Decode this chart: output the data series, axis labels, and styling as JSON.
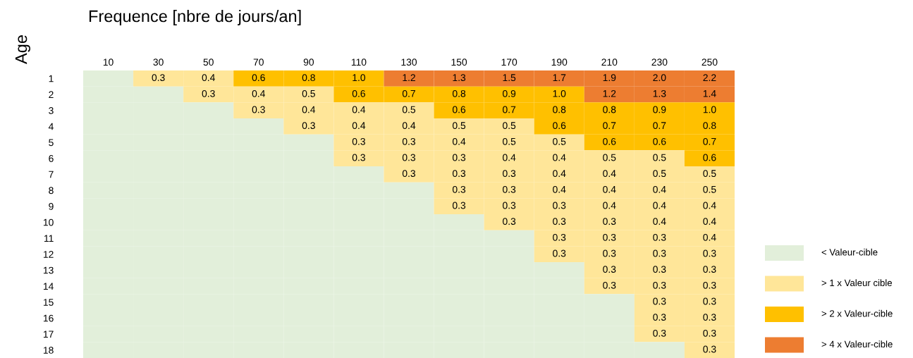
{
  "chart_data": {
    "type": "heatmap",
    "title": "Frequence [nbre de jours/an]",
    "ylabel": "Age",
    "categories": [
      "10",
      "30",
      "50",
      "70",
      "90",
      "110",
      "130",
      "150",
      "170",
      "190",
      "210",
      "230",
      "250"
    ],
    "y_categories": [
      "1",
      "2",
      "3",
      "4",
      "5",
      "6",
      "7",
      "8",
      "9",
      "10",
      "11",
      "12",
      "13",
      "14",
      "15",
      "16",
      "17",
      "18"
    ],
    "cells": [
      [
        null,
        0.3,
        0.4,
        0.6,
        0.8,
        1.0,
        1.2,
        1.3,
        1.5,
        1.7,
        1.9,
        2.0,
        2.2
      ],
      [
        null,
        null,
        0.3,
        0.4,
        0.5,
        0.6,
        0.7,
        0.8,
        0.9,
        1.0,
        1.2,
        1.3,
        1.4
      ],
      [
        null,
        null,
        null,
        0.3,
        0.4,
        0.4,
        0.5,
        0.6,
        0.7,
        0.8,
        0.8,
        0.9,
        1.0
      ],
      [
        null,
        null,
        null,
        null,
        0.3,
        0.4,
        0.4,
        0.5,
        0.5,
        0.6,
        0.7,
        0.7,
        0.8
      ],
      [
        null,
        null,
        null,
        null,
        null,
        0.3,
        0.3,
        0.4,
        0.5,
        0.5,
        0.6,
        0.6,
        0.7
      ],
      [
        null,
        null,
        null,
        null,
        null,
        0.3,
        0.3,
        0.3,
        0.4,
        0.4,
        0.5,
        0.5,
        0.6
      ],
      [
        null,
        null,
        null,
        null,
        null,
        null,
        0.3,
        0.3,
        0.3,
        0.4,
        0.4,
        0.5,
        0.5
      ],
      [
        null,
        null,
        null,
        null,
        null,
        null,
        null,
        0.3,
        0.3,
        0.4,
        0.4,
        0.4,
        0.5
      ],
      [
        null,
        null,
        null,
        null,
        null,
        null,
        null,
        0.3,
        0.3,
        0.3,
        0.4,
        0.4,
        0.4
      ],
      [
        null,
        null,
        null,
        null,
        null,
        null,
        null,
        null,
        0.3,
        0.3,
        0.3,
        0.4,
        0.4
      ],
      [
        null,
        null,
        null,
        null,
        null,
        null,
        null,
        null,
        null,
        0.3,
        0.3,
        0.3,
        0.4
      ],
      [
        null,
        null,
        null,
        null,
        null,
        null,
        null,
        null,
        null,
        0.3,
        0.3,
        0.3,
        0.3
      ],
      [
        null,
        null,
        null,
        null,
        null,
        null,
        null,
        null,
        null,
        null,
        0.3,
        0.3,
        0.3
      ],
      [
        null,
        null,
        null,
        null,
        null,
        null,
        null,
        null,
        null,
        null,
        0.3,
        0.3,
        0.3
      ],
      [
        null,
        null,
        null,
        null,
        null,
        null,
        null,
        null,
        null,
        null,
        null,
        0.3,
        0.3
      ],
      [
        null,
        null,
        null,
        null,
        null,
        null,
        null,
        null,
        null,
        null,
        null,
        0.3,
        0.3
      ],
      [
        null,
        null,
        null,
        null,
        null,
        null,
        null,
        null,
        null,
        null,
        null,
        0.3,
        0.3
      ],
      [
        null,
        null,
        null,
        null,
        null,
        null,
        null,
        null,
        null,
        null,
        null,
        null,
        0.3
      ]
    ],
    "cell_labels": [
      [
        null,
        "0.3",
        "0.4",
        "0.6",
        "0.8",
        "1.0",
        "1.2",
        "1.3",
        "1.5",
        "1.7",
        "1.9",
        "2.0",
        "2.2"
      ],
      [
        null,
        null,
        "0.3",
        "0.4",
        "0.5",
        "0.6",
        "0.7",
        "0.8",
        "0.9",
        "1.0",
        "1.2",
        "1.3",
        "1.4"
      ],
      [
        null,
        null,
        null,
        "0.3",
        "0.4",
        "0.4",
        "0.5",
        "0.6",
        "0.7",
        "0.8",
        "0.8",
        "0.9",
        "1.0"
      ],
      [
        null,
        null,
        null,
        null,
        "0.3",
        "0.4",
        "0.4",
        "0.5",
        "0.5",
        "0.6",
        "0.7",
        "0.7",
        "0.8"
      ],
      [
        null,
        null,
        null,
        null,
        null,
        "0.3",
        "0.3",
        "0.4",
        "0.5",
        "0.5",
        "0.6",
        "0.6",
        "0.7"
      ],
      [
        null,
        null,
        null,
        null,
        null,
        "0.3",
        "0.3",
        "0.3",
        "0.4",
        "0.4",
        "0.5",
        "0.5",
        "0.6"
      ],
      [
        null,
        null,
        null,
        null,
        null,
        null,
        "0.3",
        "0.3",
        "0.3",
        "0.4",
        "0.4",
        "0.5",
        "0.5"
      ],
      [
        null,
        null,
        null,
        null,
        null,
        null,
        null,
        "0.3",
        "0.3",
        "0.4",
        "0.4",
        "0.4",
        "0.5"
      ],
      [
        null,
        null,
        null,
        null,
        null,
        null,
        null,
        "0.3",
        "0.3",
        "0.3",
        "0.4",
        "0.4",
        "0.4"
      ],
      [
        null,
        null,
        null,
        null,
        null,
        null,
        null,
        null,
        "0.3",
        "0.3",
        "0.3",
        "0.4",
        "0.4"
      ],
      [
        null,
        null,
        null,
        null,
        null,
        null,
        null,
        null,
        null,
        "0.3",
        "0.3",
        "0.3",
        "0.4"
      ],
      [
        null,
        null,
        null,
        null,
        null,
        null,
        null,
        null,
        null,
        "0.3",
        "0.3",
        "0.3",
        "0.3"
      ],
      [
        null,
        null,
        null,
        null,
        null,
        null,
        null,
        null,
        null,
        null,
        "0.3",
        "0.3",
        "0.3"
      ],
      [
        null,
        null,
        null,
        null,
        null,
        null,
        null,
        null,
        null,
        null,
        "0.3",
        "0.3",
        "0.3"
      ],
      [
        null,
        null,
        null,
        null,
        null,
        null,
        null,
        null,
        null,
        null,
        null,
        "0.3",
        "0.3"
      ],
      [
        null,
        null,
        null,
        null,
        null,
        null,
        null,
        null,
        null,
        null,
        null,
        "0.3",
        "0.3"
      ],
      [
        null,
        null,
        null,
        null,
        null,
        null,
        null,
        null,
        null,
        null,
        null,
        "0.3",
        "0.3"
      ],
      [
        null,
        null,
        null,
        null,
        null,
        null,
        null,
        null,
        null,
        null,
        null,
        null,
        "0.3"
      ]
    ],
    "colors": [
      [
        "#e2efda",
        "#ffe699",
        "#ffe699",
        "#ffc000",
        "#ffc000",
        "#ffc000",
        "#ed7d31",
        "#ed7d31",
        "#ed7d31",
        "#ed7d31",
        "#ed7d31",
        "#ed7d31",
        "#ed7d31"
      ],
      [
        "#e2efda",
        "#e2efda",
        "#ffe699",
        "#ffe699",
        "#ffe699",
        "#ffc000",
        "#ffc000",
        "#ffc000",
        "#ffc000",
        "#ffc000",
        "#ed7d31",
        "#ed7d31",
        "#ed7d31"
      ],
      [
        "#e2efda",
        "#e2efda",
        "#e2efda",
        "#ffe699",
        "#ffe699",
        "#ffe699",
        "#ffe699",
        "#ffc000",
        "#ffc000",
        "#ffc000",
        "#ffc000",
        "#ffc000",
        "#ffc000"
      ],
      [
        "#e2efda",
        "#e2efda",
        "#e2efda",
        "#e2efda",
        "#ffe699",
        "#ffe699",
        "#ffe699",
        "#ffe699",
        "#ffe699",
        "#ffc000",
        "#ffc000",
        "#ffc000",
        "#ffc000"
      ],
      [
        "#e2efda",
        "#e2efda",
        "#e2efda",
        "#e2efda",
        "#e2efda",
        "#ffe699",
        "#ffe699",
        "#ffe699",
        "#ffe699",
        "#ffe699",
        "#ffc000",
        "#ffc000",
        "#ffc000"
      ],
      [
        "#e2efda",
        "#e2efda",
        "#e2efda",
        "#e2efda",
        "#e2efda",
        "#ffe699",
        "#ffe699",
        "#ffe699",
        "#ffe699",
        "#ffe699",
        "#ffe699",
        "#ffe699",
        "#ffc000"
      ],
      [
        "#e2efda",
        "#e2efda",
        "#e2efda",
        "#e2efda",
        "#e2efda",
        "#e2efda",
        "#ffe699",
        "#ffe699",
        "#ffe699",
        "#ffe699",
        "#ffe699",
        "#ffe699",
        "#ffe699"
      ],
      [
        "#e2efda",
        "#e2efda",
        "#e2efda",
        "#e2efda",
        "#e2efda",
        "#e2efda",
        "#e2efda",
        "#ffe699",
        "#ffe699",
        "#ffe699",
        "#ffe699",
        "#ffe699",
        "#ffe699"
      ],
      [
        "#e2efda",
        "#e2efda",
        "#e2efda",
        "#e2efda",
        "#e2efda",
        "#e2efda",
        "#e2efda",
        "#ffe699",
        "#ffe699",
        "#ffe699",
        "#ffe699",
        "#ffe699",
        "#ffe699"
      ],
      [
        "#e2efda",
        "#e2efda",
        "#e2efda",
        "#e2efda",
        "#e2efda",
        "#e2efda",
        "#e2efda",
        "#e2efda",
        "#ffe699",
        "#ffe699",
        "#ffe699",
        "#ffe699",
        "#ffe699"
      ],
      [
        "#e2efda",
        "#e2efda",
        "#e2efda",
        "#e2efda",
        "#e2efda",
        "#e2efda",
        "#e2efda",
        "#e2efda",
        "#e2efda",
        "#ffe699",
        "#ffe699",
        "#ffe699",
        "#ffe699"
      ],
      [
        "#e2efda",
        "#e2efda",
        "#e2efda",
        "#e2efda",
        "#e2efda",
        "#e2efda",
        "#e2efda",
        "#e2efda",
        "#e2efda",
        "#ffe699",
        "#ffe699",
        "#ffe699",
        "#ffe699"
      ],
      [
        "#e2efda",
        "#e2efda",
        "#e2efda",
        "#e2efda",
        "#e2efda",
        "#e2efda",
        "#e2efda",
        "#e2efda",
        "#e2efda",
        "#e2efda",
        "#ffe699",
        "#ffe699",
        "#ffe699"
      ],
      [
        "#e2efda",
        "#e2efda",
        "#e2efda",
        "#e2efda",
        "#e2efda",
        "#e2efda",
        "#e2efda",
        "#e2efda",
        "#e2efda",
        "#e2efda",
        "#ffe699",
        "#ffe699",
        "#ffe699"
      ],
      [
        "#e2efda",
        "#e2efda",
        "#e2efda",
        "#e2efda",
        "#e2efda",
        "#e2efda",
        "#e2efda",
        "#e2efda",
        "#e2efda",
        "#e2efda",
        "#e2efda",
        "#ffe699",
        "#ffe699"
      ],
      [
        "#e2efda",
        "#e2efda",
        "#e2efda",
        "#e2efda",
        "#e2efda",
        "#e2efda",
        "#e2efda",
        "#e2efda",
        "#e2efda",
        "#e2efda",
        "#e2efda",
        "#ffe699",
        "#ffe699"
      ],
      [
        "#e2efda",
        "#e2efda",
        "#e2efda",
        "#e2efda",
        "#e2efda",
        "#e2efda",
        "#e2efda",
        "#e2efda",
        "#e2efda",
        "#e2efda",
        "#e2efda",
        "#ffe699",
        "#ffe699"
      ],
      [
        "#e2efda",
        "#e2efda",
        "#e2efda",
        "#e2efda",
        "#e2efda",
        "#e2efda",
        "#e2efda",
        "#e2efda",
        "#e2efda",
        "#e2efda",
        "#e2efda",
        "#e2efda",
        "#ffe699"
      ]
    ],
    "annotations": [
      "< Valeur-cible",
      "> 1 x Valeur cible",
      "> 2 x Valeur-cible",
      "> 4 x Valeur-cible"
    ],
    "data_labels": true,
    "grid": false
  }
}
